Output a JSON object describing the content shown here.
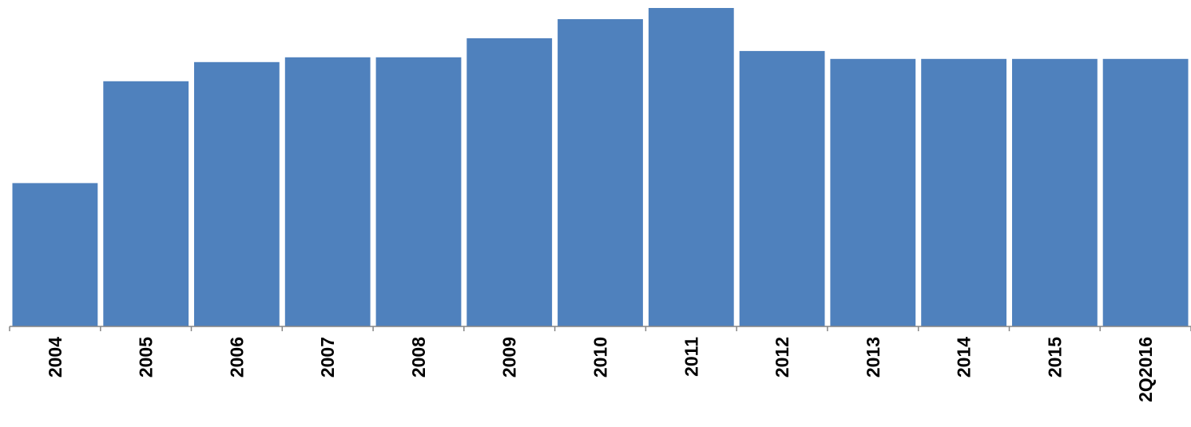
{
  "chart_data": {
    "type": "bar",
    "title": "",
    "xlabel": "",
    "ylabel": "",
    "categories": [
      "2004",
      "2005",
      "2006",
      "2007",
      "2008",
      "2009",
      "2010",
      "2011",
      "2012",
      "2013",
      "2014",
      "2015",
      "2Q2016"
    ],
    "values": [
      45,
      77,
      83,
      84.5,
      84.5,
      90.5,
      96.5,
      100,
      86.5,
      84,
      84,
      84,
      84
    ],
    "ylim": [
      0,
      100
    ],
    "y_axis_shown": false,
    "tick_label_rotation": "vertical",
    "grid": false,
    "legend": "none",
    "colors": {
      "bar": "#4F81BD",
      "axis": "#868686",
      "text": "#000000"
    }
  }
}
